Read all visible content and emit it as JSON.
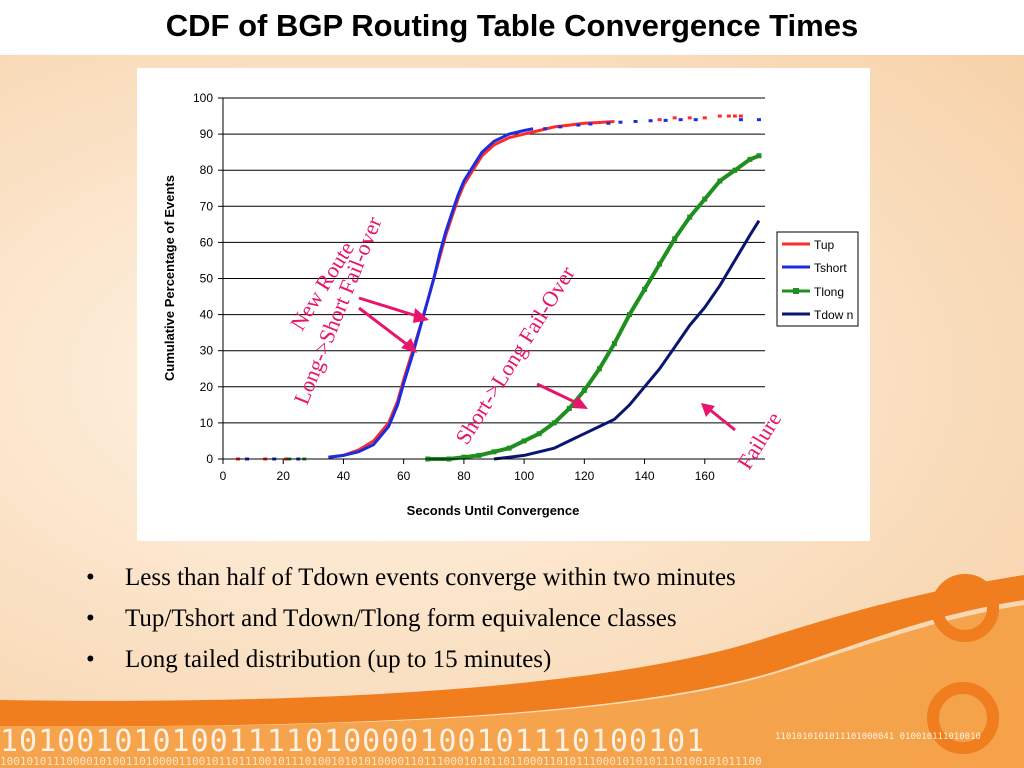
{
  "slide": {
    "title": "CDF of BGP Routing Table Convergence Times",
    "bullets": [
      "Less than half of Tdown events converge within two minutes",
      "Tup/Tshort and Tdown/Tlong form equivalence classes",
      "Long tailed distribution (up to 15 minutes)"
    ],
    "bullet_marker": "•",
    "binary_strip": "1010010101001111010000100101110100101",
    "binary_strip_small": "1101010101011101000041 010010111010010",
    "binary_strip_bottom": "1001010111000010100110100001100101101110010111010010101010000110111000101011011000110101110001010101110100101011100"
  },
  "colors": {
    "accent_orange": "#f07d1e",
    "arrow": "#e8156d",
    "annotation": "#e8156d",
    "Tup": "#ff2a2a",
    "Tshort": "#1a2ee0",
    "Tlong": "#1f8f1f",
    "Tdown": "#0a1570"
  },
  "chart_data": {
    "type": "line",
    "title": "",
    "xlabel": "Seconds Until Convergence",
    "ylabel": "Cumulative Percentage of Events",
    "xlim": [
      0,
      180
    ],
    "ylim": [
      0,
      100
    ],
    "x_ticks": [
      "0",
      "20",
      "40",
      "60",
      "80",
      "100",
      "120",
      "140",
      "160"
    ],
    "y_ticks": [
      "0",
      "10",
      "20",
      "30",
      "40",
      "50",
      "60",
      "70",
      "80",
      "90",
      "100"
    ],
    "grid": "horizontal",
    "legend": "right",
    "series": [
      {
        "name": "Tup",
        "color": "#ff2a2a",
        "points": [
          [
            35,
            0.5
          ],
          [
            40,
            1
          ],
          [
            45,
            2.5
          ],
          [
            50,
            5
          ],
          [
            55,
            10
          ],
          [
            58,
            16
          ],
          [
            60,
            22
          ],
          [
            63,
            30
          ],
          [
            66,
            38
          ],
          [
            68,
            44
          ],
          [
            70,
            50
          ],
          [
            72,
            56
          ],
          [
            74,
            62
          ],
          [
            76,
            67
          ],
          [
            78,
            72
          ],
          [
            80,
            76
          ],
          [
            83,
            80
          ],
          [
            86,
            84
          ],
          [
            90,
            87
          ],
          [
            95,
            89
          ],
          [
            100,
            90
          ],
          [
            105,
            91
          ],
          [
            110,
            92
          ],
          [
            115,
            92.5
          ],
          [
            120,
            93
          ],
          [
            125,
            93.2
          ],
          [
            130,
            93.5
          ]
        ],
        "tail": [
          [
            145,
            94
          ],
          [
            150,
            94.5
          ],
          [
            155,
            94.5
          ],
          [
            160,
            94.5
          ],
          [
            165,
            95
          ],
          [
            168,
            95
          ],
          [
            170,
            95
          ],
          [
            172,
            95
          ]
        ]
      },
      {
        "name": "Tshort",
        "color": "#1a2ee0",
        "points": [
          [
            35,
            0.5
          ],
          [
            40,
            1
          ],
          [
            45,
            2
          ],
          [
            50,
            4
          ],
          [
            55,
            9
          ],
          [
            58,
            15
          ],
          [
            60,
            21
          ],
          [
            63,
            29
          ],
          [
            66,
            38
          ],
          [
            68,
            44
          ],
          [
            70,
            50
          ],
          [
            72,
            57
          ],
          [
            74,
            63
          ],
          [
            76,
            68
          ],
          [
            78,
            73
          ],
          [
            80,
            77
          ],
          [
            83,
            81
          ],
          [
            86,
            85
          ],
          [
            90,
            88
          ],
          [
            95,
            90
          ],
          [
            100,
            91
          ],
          [
            103,
            91.5
          ]
        ],
        "tail": [
          [
            107,
            91.5
          ],
          [
            112,
            92
          ],
          [
            118,
            92.5
          ],
          [
            122,
            92.8
          ],
          [
            128,
            93
          ],
          [
            132,
            93.3
          ],
          [
            137,
            93.5
          ],
          [
            142,
            93.7
          ],
          [
            147,
            93.8
          ],
          [
            152,
            94
          ],
          [
            157,
            94
          ],
          [
            172,
            94
          ],
          [
            178,
            94
          ]
        ]
      },
      {
        "name": "Tlong",
        "color": "#1f8f1f",
        "points": [
          [
            68,
            0
          ],
          [
            75,
            0
          ],
          [
            80,
            0.5
          ],
          [
            85,
            1
          ],
          [
            90,
            2
          ],
          [
            95,
            3
          ],
          [
            100,
            5
          ],
          [
            105,
            7
          ],
          [
            110,
            10
          ],
          [
            115,
            14
          ],
          [
            120,
            19
          ],
          [
            125,
            25
          ],
          [
            130,
            32
          ],
          [
            135,
            40
          ],
          [
            140,
            47
          ],
          [
            145,
            54
          ],
          [
            150,
            61
          ],
          [
            155,
            67
          ],
          [
            160,
            72
          ],
          [
            165,
            77
          ],
          [
            170,
            80
          ],
          [
            175,
            83
          ],
          [
            178,
            84
          ]
        ]
      },
      {
        "name": "Tdow n",
        "color": "#0a1570",
        "points": [
          [
            90,
            0
          ],
          [
            95,
            0.5
          ],
          [
            100,
            1
          ],
          [
            105,
            2
          ],
          [
            110,
            3
          ],
          [
            115,
            5
          ],
          [
            120,
            7
          ],
          [
            125,
            9
          ],
          [
            130,
            11
          ],
          [
            135,
            15
          ],
          [
            140,
            20
          ],
          [
            145,
            25
          ],
          [
            150,
            31
          ],
          [
            155,
            37
          ],
          [
            160,
            42
          ],
          [
            165,
            48
          ],
          [
            170,
            55
          ],
          [
            175,
            62
          ],
          [
            178,
            66
          ]
        ]
      }
    ],
    "scattered_near_zero": [
      {
        "series": "Tup",
        "x": [
          5,
          14,
          21
        ],
        "y": 0
      },
      {
        "series": "Tshort",
        "x": [
          8,
          17,
          25
        ],
        "y": 0
      },
      {
        "series": "Tlong",
        "x": [
          22,
          27
        ],
        "y": 0
      }
    ],
    "annotations": [
      {
        "text": "New Route",
        "color": "#e8156d"
      },
      {
        "text": "Long->Short Fail-over",
        "color": "#e8156d"
      },
      {
        "text": "Short->Long Fail-Over",
        "color": "#e8156d"
      },
      {
        "text": "Failure",
        "color": "#e8156d"
      }
    ]
  }
}
